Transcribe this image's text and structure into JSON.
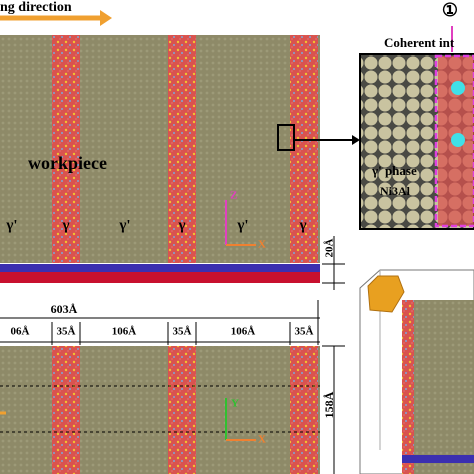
{
  "header": {
    "direction_label": "ng direction"
  },
  "top_panel": {
    "label": "workpiece",
    "axis_z": "Z",
    "axis_x": "X",
    "phases": [
      "γ'",
      "γ",
      "γ'",
      "γ",
      "γ'",
      "γ"
    ],
    "thickness": "20Å"
  },
  "inset": {
    "number": "①",
    "title": "Coherent int",
    "phase": "γ' phase",
    "composition": "Ni3Al"
  },
  "bottom_panel": {
    "total_width": "603Å",
    "widths": [
      "06Å",
      "35Å",
      "106Å",
      "35Å",
      "106Å",
      "35Å"
    ],
    "height": "158Å",
    "axis_y": "Y",
    "axis_x": "X"
  }
}
